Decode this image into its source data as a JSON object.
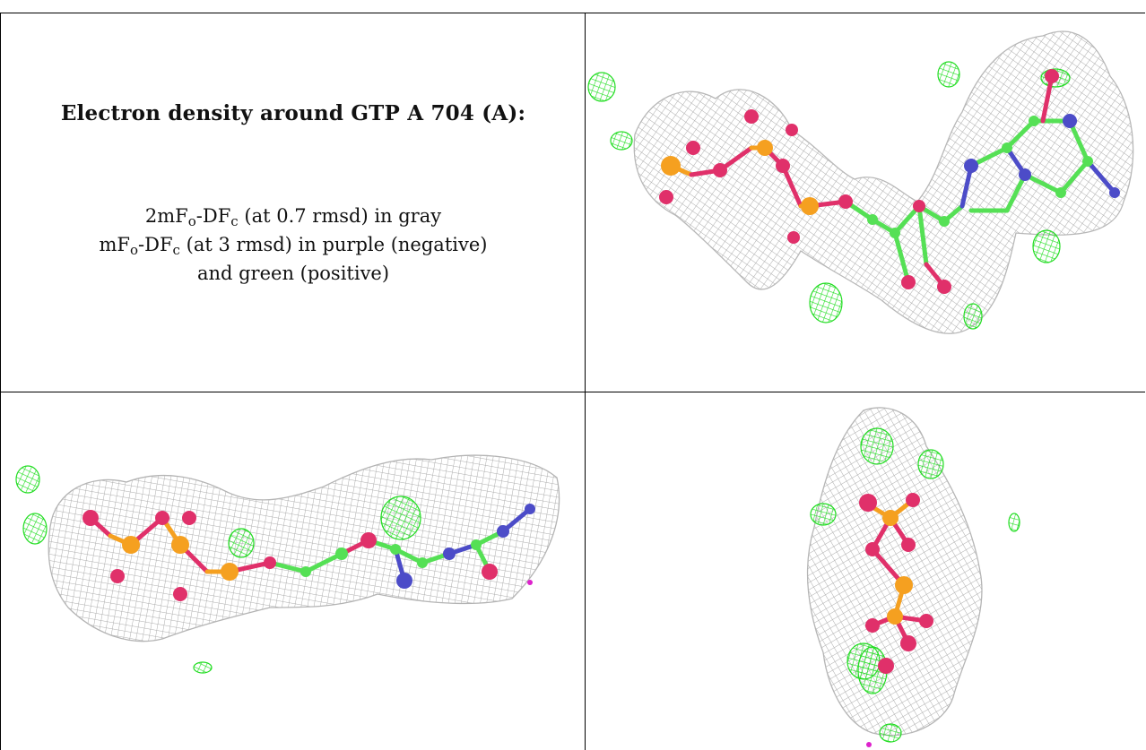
{
  "caption": {
    "title": "Electron density around GTP A 704 (A):",
    "line1": {
      "pre": "2mF",
      "sub1": "o",
      "mid": "-DF",
      "sub2": "c",
      "post": " (at 0.7 rmsd) in gray"
    },
    "line2": {
      "pre": "mF",
      "sub1": "o",
      "mid": "-DF",
      "sub2": "c",
      "post": " (at 3 rmsd) in purple (negative)"
    },
    "line3": "and green (positive)"
  },
  "colors": {
    "mesh_gray": "#a8a8a8",
    "mesh_green": "#22dd22",
    "mesh_purple": "#dd22cc",
    "carbon": "#55e055",
    "oxygen": "#e0306a",
    "phosphorus": "#f5a020",
    "nitrogen": "#4c4cc8"
  },
  "panels": [
    {
      "view": "top-right density view"
    },
    {
      "view": "bottom-left density view"
    },
    {
      "view": "bottom-right density view"
    }
  ]
}
